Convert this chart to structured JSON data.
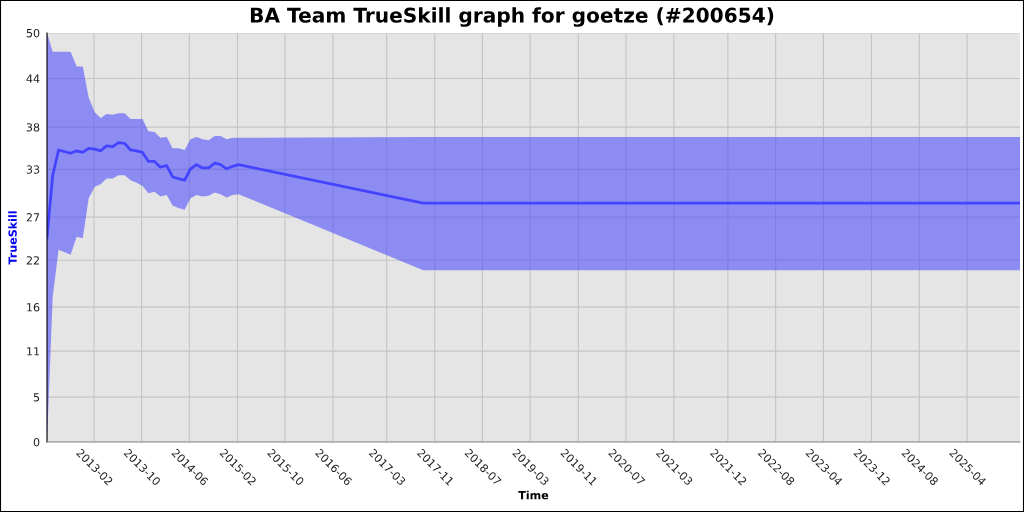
{
  "chart_data": {
    "type": "line",
    "title": "BA Team TrueSkill graph for goetze (#200654)",
    "xlabel": "Time",
    "ylabel": "TrueSkill",
    "x": [
      "2012-06-07",
      "2012-07-06",
      "2012-08-05",
      "2012-10-05",
      "2012-11-05",
      "2012-12-06",
      "2013-01-05",
      "2013-02-05",
      "2013-03-07",
      "2013-04-06",
      "2013-05-07",
      "2013-06-06",
      "2013-07-07",
      "2013-08-06",
      "2013-09-06",
      "2013-10-06",
      "2013-11-05",
      "2013-12-06",
      "2014-01-05",
      "2014-02-06",
      "2014-03-08",
      "2014-04-07",
      "2014-05-08",
      "2014-06-07",
      "2014-07-08",
      "2014-08-07",
      "2014-09-07",
      "2014-10-08",
      "2014-11-07",
      "2014-12-08",
      "2015-01-07",
      "2015-02-07",
      "2017-09-03",
      "2025-12-26"
    ],
    "series": [
      {
        "color": "#4444ff",
        "values": [
          25.0,
          32.6,
          35.7,
          35.3,
          35.6,
          35.4,
          35.9,
          35.8,
          35.6,
          36.2,
          36.1,
          36.6,
          36.5,
          35.7,
          35.6,
          35.4,
          34.3,
          34.3,
          33.6,
          33.8,
          32.4,
          32.2,
          32.0,
          33.4,
          33.9,
          33.5,
          33.5,
          34.1,
          33.9,
          33.4,
          33.7,
          33.9,
          29.2,
          29.2
        ],
        "lower": [
          0,
          17.8,
          23.5,
          22.9,
          25.1,
          24.9,
          29.8,
          31.2,
          31.5,
          32.2,
          32.2,
          32.6,
          32.6,
          32.0,
          31.7,
          31.3,
          30.4,
          30.6,
          30.0,
          30.2,
          28.9,
          28.6,
          28.4,
          29.8,
          30.2,
          30.0,
          30.1,
          30.5,
          30.3,
          29.9,
          30.2,
          30.3,
          21.0,
          21.0
        ],
        "upper": [
          50,
          47.7,
          47.7,
          47.7,
          45.9,
          45.9,
          42.1,
          40.3,
          39.6,
          40.1,
          40.0,
          40.2,
          40.2,
          39.5,
          39.5,
          39.5,
          38.0,
          37.9,
          37.2,
          37.3,
          35.9,
          35.9,
          35.7,
          37.0,
          37.3,
          37.0,
          36.9,
          37.4,
          37.4,
          37.0,
          37.2,
          37.2,
          37.3,
          37.3
        ]
      }
    ],
    "xlim": [
      "2012-06-07",
      "2025-12-26"
    ],
    "xticks": [
      {
        "value": "2013-02-01",
        "label": "2013-02"
      },
      {
        "value": "2013-10-01",
        "label": "2013-10"
      },
      {
        "value": "2014-06-01",
        "label": "2014-06"
      },
      {
        "value": "2015-02-01",
        "label": "2015-02"
      },
      {
        "value": "2015-10-01",
        "label": "2015-10"
      },
      {
        "value": "2016-06-01",
        "label": "2016-06"
      },
      {
        "value": "2017-03-01",
        "label": "2017-03"
      },
      {
        "value": "2017-11-01",
        "label": "2017-11"
      },
      {
        "value": "2018-07-01",
        "label": "2018-07"
      },
      {
        "value": "2019-03-01",
        "label": "2019-03"
      },
      {
        "value": "2019-11-01",
        "label": "2019-11"
      },
      {
        "value": "2020-07-01",
        "label": "2020-07"
      },
      {
        "value": "2021-03-01",
        "label": "2021-03"
      },
      {
        "value": "2021-12-01",
        "label": "2021-12"
      },
      {
        "value": "2022-08-01",
        "label": "2022-08"
      },
      {
        "value": "2023-04-01",
        "label": "2023-04"
      },
      {
        "value": "2023-12-01",
        "label": "2023-12"
      },
      {
        "value": "2024-08-01",
        "label": "2024-08"
      },
      {
        "value": "2025-04-01",
        "label": "2025-04"
      }
    ],
    "ylim": [
      0,
      50
    ],
    "yticks": [
      0,
      {
        "value": 5.49,
        "label": "5"
      },
      {
        "value": 11.11,
        "label": "11"
      },
      {
        "value": 16.49,
        "label": "16"
      },
      {
        "value": 22.22,
        "label": "22"
      },
      {
        "value": 27.49,
        "label": "27"
      },
      {
        "value": 33.33,
        "label": "33"
      },
      {
        "value": 38.49,
        "label": "38"
      },
      {
        "value": 44.44,
        "label": "44"
      },
      50
    ],
    "grid": true
  }
}
